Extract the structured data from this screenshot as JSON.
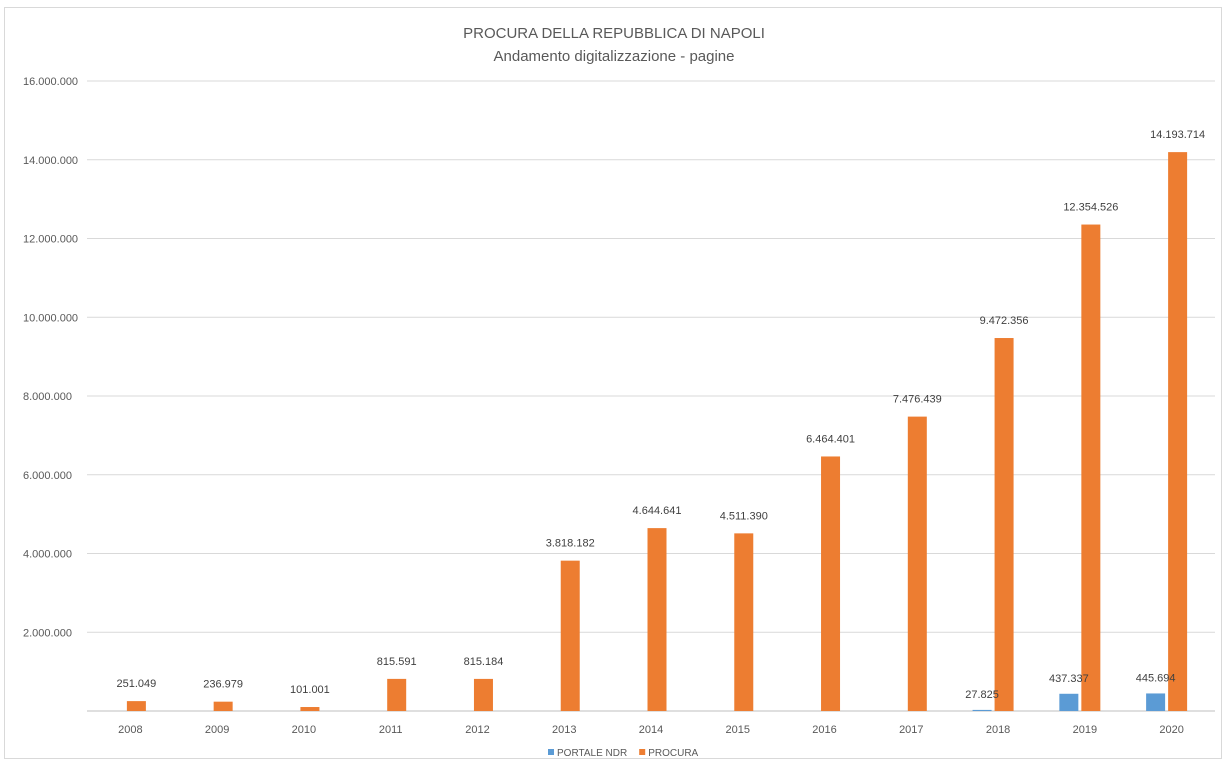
{
  "chart_data": {
    "type": "bar",
    "title": "PROCURA DELLA REPUBBLICA DI NAPOLI",
    "subtitle": "Andamento digitalizzazione - pagine",
    "categories": [
      "2008",
      "2009",
      "2010",
      "2011",
      "2012",
      "2013",
      "2014",
      "2015",
      "2016",
      "2017",
      "2018",
      "2019",
      "2020"
    ],
    "series": [
      {
        "name": "PORTALE NDR",
        "color": "#5b9bd5",
        "values": [
          null,
          null,
          null,
          null,
          null,
          null,
          null,
          null,
          null,
          null,
          27825,
          437337,
          445694
        ],
        "labels": [
          "",
          "",
          "",
          "",
          "",
          "",
          "",
          "",
          "",
          "",
          "27.825",
          "437.337",
          "445.694"
        ]
      },
      {
        "name": "PROCURA",
        "color": "#ed7d31",
        "values": [
          251049,
          236979,
          101001,
          815591,
          815184,
          3818182,
          4644641,
          4511390,
          6464401,
          7476439,
          9472356,
          12354526,
          14193714
        ],
        "labels": [
          "251.049",
          "236.979",
          "101.001",
          "815.591",
          "815.184",
          "3.818.182",
          "4.644.641",
          "4.511.390",
          "6.464.401",
          "7.476.439",
          "9.472.356",
          "12.354.526",
          "14.193.714"
        ]
      }
    ],
    "ylim": [
      0,
      16000000
    ],
    "yticks": [
      0,
      2000000,
      4000000,
      6000000,
      8000000,
      10000000,
      12000000,
      14000000,
      16000000
    ],
    "ytick_labels": [
      "",
      "2.000.000",
      "4.000.000",
      "6.000.000",
      "8.000.000",
      "10.000.000",
      "12.000.000",
      "14.000.000",
      "16.000.000"
    ],
    "grid": true,
    "legend_position": "bottom"
  }
}
